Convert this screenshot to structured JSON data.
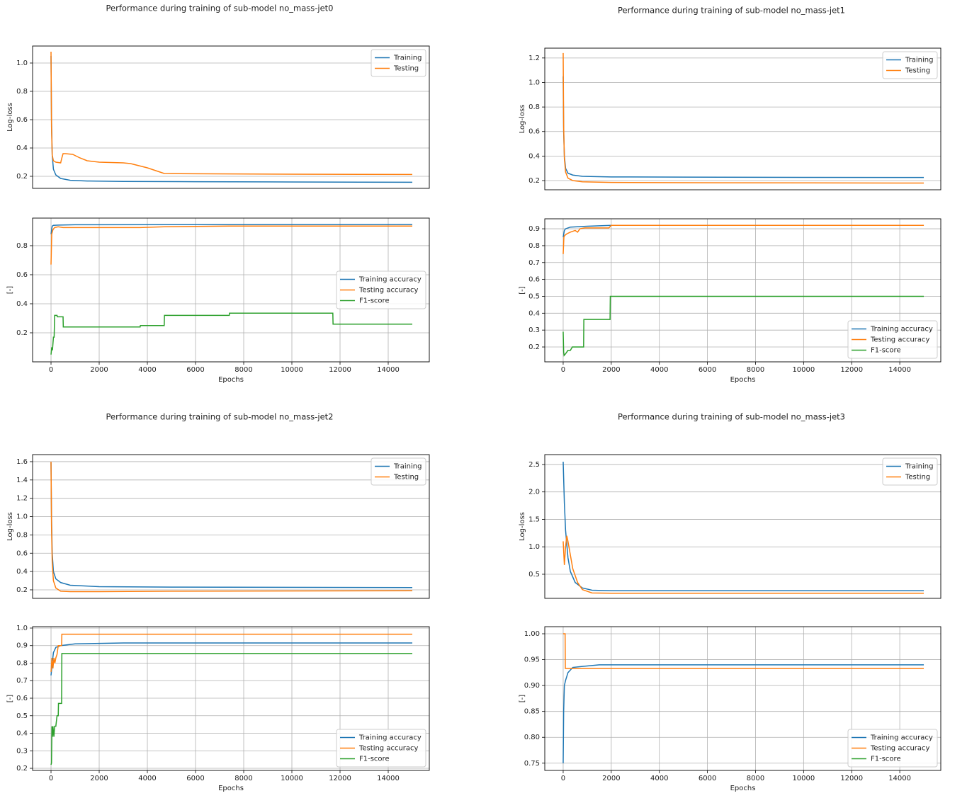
{
  "chart_data": [
    {
      "type": "line",
      "title": "Performance during training of sub-model no_mass-jet0",
      "ylabel": "Log-loss",
      "xlim": [
        -765,
        15706
      ],
      "ylim": [
        0.115,
        1.12
      ],
      "yticks": [
        0.2,
        0.4,
        0.6,
        0.8,
        {
          "value": 1,
          "label": "1.0"
        }
      ],
      "grid": "y",
      "legend": "upper right",
      "series": [
        {
          "name": "Training",
          "color": "#1f77b4",
          "x": [
            0,
            20,
            50,
            100,
            200,
            400,
            800,
            1500,
            3000,
            6000,
            10000,
            15000
          ],
          "values": [
            1.05,
            0.6,
            0.35,
            0.25,
            0.21,
            0.185,
            0.172,
            0.167,
            0.164,
            0.162,
            0.16,
            0.158
          ]
        },
        {
          "name": "Testing",
          "color": "#ff7f0e",
          "x": [
            0,
            20,
            50,
            100,
            200,
            400,
            450,
            500,
            600,
            900,
            1200,
            1500,
            2000,
            3000,
            3300,
            4000,
            4700,
            6000,
            10000,
            15000
          ],
          "values": [
            1.08,
            0.55,
            0.35,
            0.31,
            0.3,
            0.295,
            0.33,
            0.36,
            0.36,
            0.355,
            0.33,
            0.31,
            0.3,
            0.295,
            0.29,
            0.26,
            0.22,
            0.218,
            0.215,
            0.213
          ]
        }
      ]
    },
    {
      "type": "line",
      "xlabel": "Epochs",
      "ylabel": "[-]",
      "xlim": [
        -765,
        15706
      ],
      "ylim": [
        0,
        0.99
      ],
      "xticks": [
        0,
        2000,
        4000,
        6000,
        8000,
        10000,
        12000,
        14000
      ],
      "yticks": [
        0.2,
        0.4,
        0.6,
        0.8
      ],
      "grid": "both",
      "legend": "center right",
      "series": [
        {
          "name": "Training accuracy",
          "color": "#1f77b4",
          "x": [
            0,
            50,
            100,
            300,
            1000,
            5000,
            15000
          ],
          "values": [
            0.88,
            0.935,
            0.94,
            0.942,
            0.944,
            0.945,
            0.946
          ]
        },
        {
          "name": "Testing accuracy",
          "color": "#ff7f0e",
          "x": [
            0,
            30,
            80,
            150,
            300,
            500,
            800,
            3700,
            4700,
            7400,
            11700,
            15000
          ],
          "values": [
            0.67,
            0.88,
            0.91,
            0.925,
            0.93,
            0.925,
            0.925,
            0.925,
            0.93,
            0.935,
            0.935,
            0.935
          ]
        },
        {
          "name": "F1-score",
          "color": "#2ca02c",
          "x": [
            0,
            30,
            60,
            100,
            130,
            150,
            250,
            260,
            500,
            510,
            3700,
            3710,
            4700,
            4710,
            7400,
            7410,
            11700,
            11710,
            15000
          ],
          "values": [
            0.05,
            0.1,
            0.08,
            0.17,
            0.17,
            0.32,
            0.32,
            0.31,
            0.31,
            0.24,
            0.24,
            0.25,
            0.25,
            0.32,
            0.32,
            0.335,
            0.335,
            0.26,
            0.26
          ]
        }
      ]
    },
    {
      "type": "line",
      "title": "Performance during training of sub-model no_mass-jet1",
      "ylabel": "Log-loss",
      "xlim": [
        -765,
        15706
      ],
      "ylim": [
        0.125,
        1.28
      ],
      "yticks": [
        0.2,
        0.4,
        0.6,
        0.8,
        {
          "value": 1,
          "label": "1.0"
        },
        1.2
      ],
      "grid": "y",
      "legend": "upper right",
      "series": [
        {
          "name": "Training",
          "color": "#1f77b4",
          "x": [
            0,
            20,
            50,
            100,
            200,
            400,
            800,
            2000,
            5000,
            10000,
            15000
          ],
          "values": [
            1.05,
            0.6,
            0.4,
            0.3,
            0.26,
            0.245,
            0.235,
            0.23,
            0.228,
            0.226,
            0.225
          ]
        },
        {
          "name": "Testing",
          "color": "#ff7f0e",
          "x": [
            0,
            20,
            50,
            100,
            200,
            400,
            800,
            2000,
            5000,
            10000,
            15000
          ],
          "values": [
            1.24,
            0.65,
            0.38,
            0.27,
            0.22,
            0.2,
            0.19,
            0.185,
            0.183,
            0.181,
            0.18
          ]
        }
      ]
    },
    {
      "type": "line",
      "xlabel": "Epochs",
      "ylabel": "[-]",
      "xlim": [
        -765,
        15706
      ],
      "ylim": [
        0.112,
        0.959
      ],
      "xticks": [
        0,
        2000,
        4000,
        6000,
        8000,
        10000,
        12000,
        14000
      ],
      "yticks": [
        0.2,
        0.3,
        0.4,
        0.5,
        0.6,
        0.7,
        0.8,
        0.9
      ],
      "grid": "both",
      "legend": "lower right",
      "series": [
        {
          "name": "Training accuracy",
          "color": "#1f77b4",
          "x": [
            0,
            50,
            100,
            300,
            1000,
            2000,
            15000
          ],
          "values": [
            0.85,
            0.89,
            0.9,
            0.91,
            0.915,
            0.92,
            0.92
          ]
        },
        {
          "name": "Testing accuracy",
          "color": "#ff7f0e",
          "x": [
            0,
            30,
            60,
            150,
            300,
            500,
            600,
            700,
            900,
            1900,
            2000,
            15000
          ],
          "values": [
            0.75,
            0.85,
            0.86,
            0.87,
            0.88,
            0.89,
            0.88,
            0.9,
            0.905,
            0.905,
            0.92,
            0.92
          ]
        },
        {
          "name": "F1-score",
          "color": "#2ca02c",
          "x": [
            0,
            20,
            40,
            100,
            200,
            300,
            380,
            390,
            850,
            860,
            1950,
            1960,
            15000
          ],
          "values": [
            0.29,
            0.17,
            0.15,
            0.16,
            0.18,
            0.18,
            0.2,
            0.2,
            0.2,
            0.363,
            0.363,
            0.5,
            0.5
          ]
        }
      ]
    },
    {
      "type": "line",
      "title": "Performance during training of sub-model no_mass-jet2",
      "ylabel": "Log-loss",
      "xlim": [
        -765,
        15706
      ],
      "ylim": [
        0.107,
        1.677
      ],
      "yticks": [
        0.2,
        0.4,
        0.6,
        0.8,
        {
          "value": 1,
          "label": "1.0"
        },
        1.2,
        1.4,
        1.6
      ],
      "grid": "y",
      "legend": "upper right",
      "series": [
        {
          "name": "Training",
          "color": "#1f77b4",
          "x": [
            0,
            20,
            50,
            100,
            200,
            400,
            800,
            2000,
            5000,
            15000
          ],
          "values": [
            1.59,
            1.0,
            0.6,
            0.4,
            0.32,
            0.28,
            0.25,
            0.235,
            0.23,
            0.225
          ]
        },
        {
          "name": "Testing",
          "color": "#ff7f0e",
          "x": [
            0,
            20,
            50,
            100,
            200,
            400,
            800,
            2000,
            5000,
            15000
          ],
          "values": [
            1.6,
            0.9,
            0.5,
            0.3,
            0.22,
            0.185,
            0.18,
            0.18,
            0.185,
            0.19
          ]
        }
      ]
    },
    {
      "type": "line",
      "xlabel": "Epochs",
      "ylabel": "[-]",
      "xlim": [
        -765,
        15706
      ],
      "ylim": [
        0.188,
        1.008
      ],
      "xticks": [
        0,
        2000,
        4000,
        6000,
        8000,
        10000,
        12000,
        14000
      ],
      "yticks": [
        0.2,
        0.3,
        0.4,
        0.5,
        0.6,
        0.7,
        0.8,
        0.9,
        {
          "value": 1,
          "label": "1.0"
        }
      ],
      "grid": "both",
      "legend": "lower right",
      "series": [
        {
          "name": "Training accuracy",
          "color": "#1f77b4",
          "x": [
            0,
            50,
            100,
            200,
            400,
            1000,
            3000,
            15000
          ],
          "values": [
            0.73,
            0.8,
            0.86,
            0.89,
            0.9,
            0.91,
            0.915,
            0.915
          ]
        },
        {
          "name": "Testing accuracy",
          "color": "#ff7f0e",
          "x": [
            0,
            40,
            80,
            120,
            160,
            200,
            250,
            300,
            440,
            450,
            15000
          ],
          "values": [
            0.75,
            0.83,
            0.77,
            0.83,
            0.8,
            0.83,
            0.85,
            0.9,
            0.9,
            0.965,
            0.965
          ]
        },
        {
          "name": "F1-score",
          "color": "#2ca02c",
          "x": [
            0,
            20,
            40,
            60,
            80,
            120,
            150,
            200,
            250,
            300,
            310,
            440,
            450,
            15000
          ],
          "values": [
            0.22,
            0.23,
            0.44,
            0.38,
            0.44,
            0.38,
            0.44,
            0.44,
            0.5,
            0.5,
            0.57,
            0.57,
            0.855,
            0.855
          ]
        }
      ]
    },
    {
      "type": "line",
      "title": "Performance during training of sub-model no_mass-jet3",
      "ylabel": "Log-loss",
      "xlim": [
        -765,
        15706
      ],
      "ylim": [
        0.061,
        2.68
      ],
      "yticks": [
        0.5,
        {
          "value": 1,
          "label": "1.0"
        },
        1.5,
        {
          "value": 2,
          "label": "2.0"
        },
        2.5
      ],
      "grid": "y",
      "legend": "upper right",
      "series": [
        {
          "name": "Training",
          "color": "#1f77b4",
          "x": [
            0,
            50,
            100,
            200,
            300,
            500,
            800,
            1200,
            2000,
            15000
          ],
          "values": [
            2.55,
            1.8,
            1.3,
            0.8,
            0.55,
            0.35,
            0.25,
            0.21,
            0.2,
            0.2
          ]
        },
        {
          "name": "Testing",
          "color": "#ff7f0e",
          "x": [
            0,
            50,
            100,
            150,
            200,
            300,
            400,
            600,
            800,
            1200,
            2000,
            15000
          ],
          "values": [
            1.1,
            0.67,
            1.0,
            1.2,
            1.1,
            0.85,
            0.6,
            0.35,
            0.22,
            0.16,
            0.155,
            0.155
          ]
        }
      ]
    },
    {
      "type": "line",
      "xlabel": "Epochs",
      "ylabel": "[-]",
      "xlim": [
        -765,
        15706
      ],
      "ylim": [
        0.736,
        1.0137
      ],
      "xticks": [
        0,
        2000,
        4000,
        6000,
        8000,
        10000,
        12000,
        14000
      ],
      "yticks": [
        0.75,
        {
          "value": 0.8,
          "label": "0.80"
        },
        0.85,
        {
          "value": 0.9,
          "label": "0.90"
        },
        0.95,
        {
          "value": 1,
          "label": "1.00"
        }
      ],
      "grid": "both",
      "legend": "lower right",
      "series": [
        {
          "name": "Training accuracy",
          "color": "#1f77b4",
          "x": [
            0,
            20,
            50,
            100,
            200,
            400,
            800,
            1500,
            3000,
            15000
          ],
          "values": [
            0.75,
            0.85,
            0.9,
            0.91,
            0.925,
            0.935,
            0.937,
            0.94,
            0.94,
            0.94
          ]
        },
        {
          "name": "Testing accuracy",
          "color": "#ff7f0e",
          "x": [
            0,
            80,
            90,
            15000
          ],
          "values": [
            1.0,
            1.0,
            0.933,
            0.933
          ]
        },
        {
          "name": "F1-score",
          "color": "#2ca02c",
          "x": [],
          "values": []
        }
      ]
    }
  ]
}
